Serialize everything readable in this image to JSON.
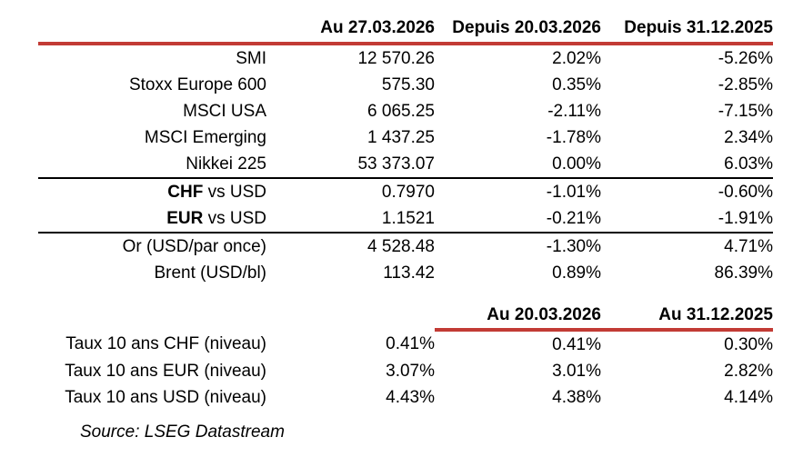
{
  "accent_red": "#C23B35",
  "markets_table": {
    "headers": {
      "as_of": "Au 27.03.2026",
      "since_week": "Depuis 20.03.2026",
      "since_ytd": "Depuis 31.12.2025"
    },
    "rows": [
      {
        "label": "SMI",
        "value": "12 570.26",
        "chg_week": "2.02%",
        "chg_ytd": "-5.26%"
      },
      {
        "label": "Stoxx Europe 600",
        "value": "575.30",
        "chg_week": "0.35%",
        "chg_ytd": "-2.85%"
      },
      {
        "label": "MSCI USA",
        "value": "6 065.25",
        "chg_week": "-2.11%",
        "chg_ytd": "-7.15%"
      },
      {
        "label": "MSCI Emerging",
        "value": "1 437.25",
        "chg_week": "-1.78%",
        "chg_ytd": "2.34%"
      },
      {
        "label": "Nikkei 225",
        "value": "53 373.07",
        "chg_week": "0.00%",
        "chg_ytd": "6.03%"
      },
      {
        "label_bold": "CHF",
        "label_rest": " vs USD",
        "value": "0.7970",
        "chg_week": "-1.01%",
        "chg_ytd": "-0.60%"
      },
      {
        "label_bold": "EUR",
        "label_rest": " vs USD",
        "value": "1.1521",
        "chg_week": "-0.21%",
        "chg_ytd": "-1.91%"
      },
      {
        "label": "Or (USD/par once)",
        "value": "4 528.48",
        "chg_week": "-1.30%",
        "chg_ytd": "4.71%"
      },
      {
        "label": "Brent (USD/bl)",
        "value": "113.42",
        "chg_week": "0.89%",
        "chg_ytd": "86.39%"
      }
    ]
  },
  "rates_table": {
    "headers": {
      "prev_week": "Au 20.03.2026",
      "prev_year_end": "Au 31.12.2025"
    },
    "rows": [
      {
        "label": "Taux 10 ans CHF (niveau)",
        "value": "0.41%",
        "prev_week": "0.41%",
        "prev_year_end": "0.30%"
      },
      {
        "label": "Taux 10 ans EUR (niveau)",
        "value": "3.07%",
        "prev_week": "3.01%",
        "prev_year_end": "2.82%"
      },
      {
        "label": "Taux 10 ans USD (niveau)",
        "value": "4.43%",
        "prev_week": "4.38%",
        "prev_year_end": "4.14%"
      }
    ]
  },
  "source_note": "Source: LSEG Datastream"
}
